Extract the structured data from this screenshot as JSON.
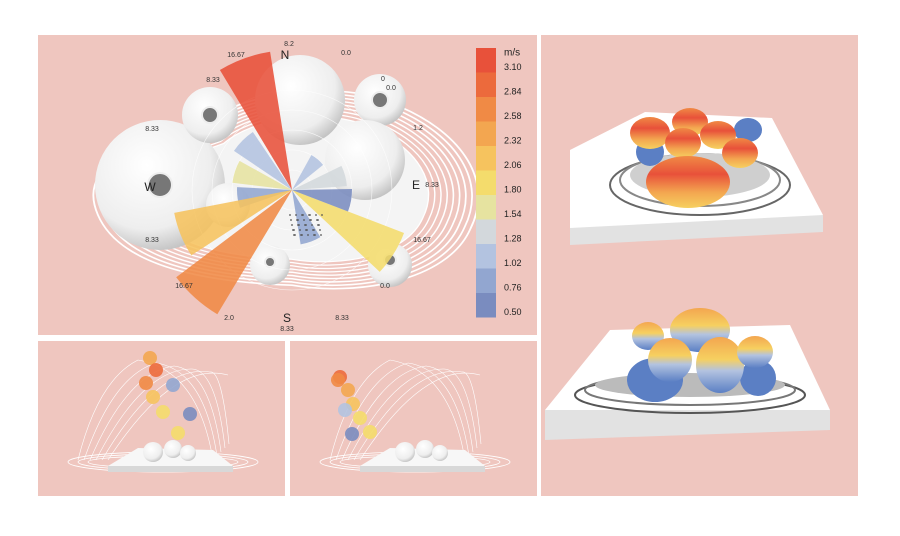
{
  "wind_rose": {
    "compass": {
      "n": "N",
      "e": "E",
      "s": "S",
      "w": "W"
    },
    "labels": [
      "16.67",
      "8.2",
      "0.0",
      "8.33",
      "0",
      "0.0",
      "8.33",
      "1.2",
      "8.33",
      "8.33",
      "16.67",
      "16.67",
      "0.0",
      "2.0",
      "8.33",
      "8.33"
    ]
  },
  "legend": {
    "unit": "m/s",
    "entries": [
      {
        "label": "3.10",
        "color": "#e8513a"
      },
      {
        "label": "2.84",
        "color": "#ec6a3c"
      },
      {
        "label": "2.58",
        "color": "#f08a45"
      },
      {
        "label": "2.32",
        "color": "#f3a650"
      },
      {
        "label": "2.06",
        "color": "#f6c35e"
      },
      {
        "label": "1.80",
        "color": "#f4dc6c"
      },
      {
        "label": "1.54",
        "color": "#e6e3a0"
      },
      {
        "label": "1.28",
        "color": "#d3d8dc"
      },
      {
        "label": "1.02",
        "color": "#b3c3e0"
      },
      {
        "label": "0.76",
        "color": "#92a6d0"
      },
      {
        "label": "0.50",
        "color": "#7a8cbf"
      }
    ]
  }
}
